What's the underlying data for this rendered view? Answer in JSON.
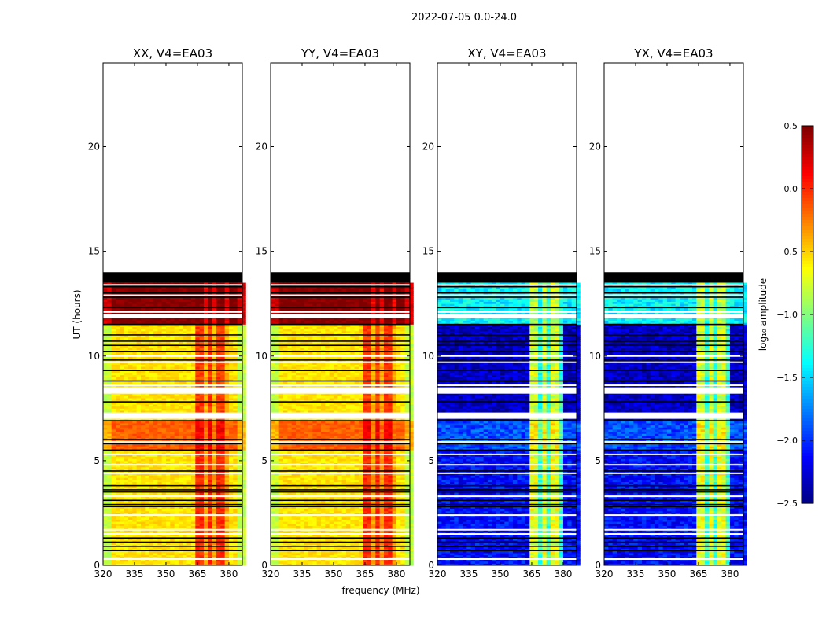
{
  "chart_data": {
    "type": "heatmap",
    "suptitle": "2022-07-05 0.0-24.0",
    "xlabel": "frequency (MHz)",
    "ylabel": "UT (hours)",
    "xlim": [
      320,
      386.4
    ],
    "ylim": [
      0,
      24
    ],
    "xticks": [
      "320",
      "335",
      "350",
      "365",
      "380"
    ],
    "xtick_values": [
      320,
      335,
      350,
      365,
      380
    ],
    "yticks": [
      "0",
      "5",
      "10",
      "15",
      "20"
    ],
    "ytick_values": [
      0,
      5,
      10,
      15,
      20
    ],
    "panels": [
      {
        "title": "XX, V4=EA03",
        "kind": "parallel"
      },
      {
        "title": "YY, V4=EA03",
        "kind": "parallel"
      },
      {
        "title": "XY, V4=EA03",
        "kind": "cross"
      },
      {
        "title": "YX, V4=EA03",
        "kind": "cross"
      }
    ],
    "high_band_mhz": [
      363,
      380
    ],
    "bands": [
      {
        "t0": 13.5,
        "t1": 14.0,
        "parallel_low": null,
        "parallel_high": null,
        "cross_low": null,
        "cross_high": null,
        "flag": "black"
      },
      {
        "t0": 11.5,
        "t1": 13.5,
        "parallel_low": 0.5,
        "parallel_high": 0.5,
        "cross_low": -1.4,
        "cross_high": -0.8
      },
      {
        "t0": 6.9,
        "t1": 11.5,
        "parallel_low": -0.55,
        "parallel_high": -0.05,
        "cross_low": -2.3,
        "cross_high": -0.75
      },
      {
        "t0": 5.5,
        "t1": 6.9,
        "parallel_low": -0.15,
        "parallel_high": 0.15,
        "cross_low": -1.9,
        "cross_high": -0.6
      },
      {
        "t0": 0.0,
        "t1": 5.5,
        "parallel_low": -0.55,
        "parallel_high": 0.0,
        "cross_low": -2.1,
        "cross_high": -0.7
      }
    ],
    "white_gaps": [
      [
        8.2,
        8.5
      ],
      [
        7.0,
        7.3
      ],
      [
        11.8,
        12.0
      ]
    ],
    "black_lines": [
      13.3,
      13.0,
      12.8,
      12.3,
      11.5,
      11.0,
      10.7,
      10.5,
      10.2,
      9.8,
      9.3,
      8.8,
      7.8,
      6.9,
      6.0,
      5.8,
      5.5,
      4.5,
      3.8,
      3.6,
      3.5,
      3.1,
      2.9,
      2.8,
      1.3,
      1.1,
      0.9,
      0.7
    ],
    "white_lines": [
      13.4,
      12.9,
      12.1,
      10.0,
      9.7,
      8.6,
      5.9,
      5.3,
      4.8,
      4.4,
      3.3,
      2.4,
      1.7,
      1.5,
      0.3
    ],
    "colorbar": {
      "label": "log₁₀ amplitude",
      "range": [
        -2.5,
        0.5
      ],
      "colormap": "jet",
      "ticks": [
        "0.5",
        "0.0",
        "−0.5",
        "−1.0",
        "−1.5",
        "−2.0",
        "−2.5"
      ],
      "tick_values": [
        0.5,
        0.0,
        -0.5,
        -1.0,
        -1.5,
        -2.0,
        -2.5
      ]
    }
  }
}
